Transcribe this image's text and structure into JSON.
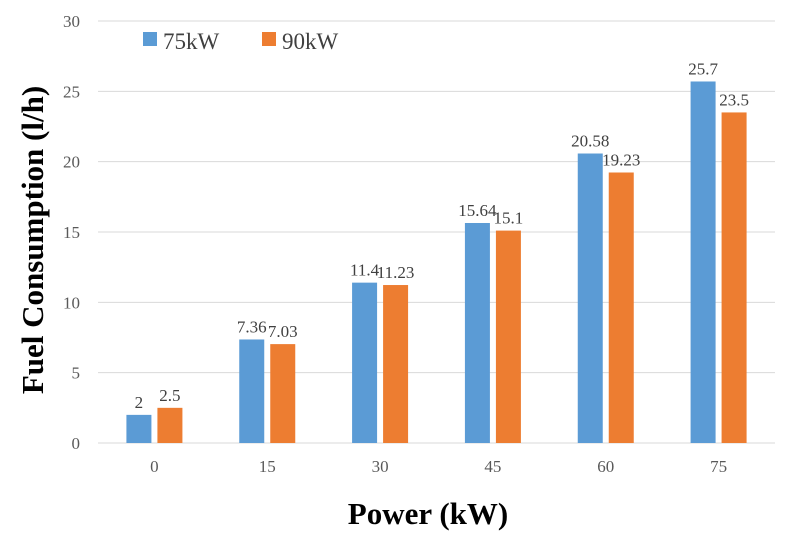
{
  "chart_data": {
    "type": "bar",
    "title": "",
    "xlabel": "Power (kW)",
    "ylabel": "Fuel Consumption (l/h)",
    "categories": [
      "0",
      "15",
      "30",
      "45",
      "60",
      "75"
    ],
    "series": [
      {
        "name": "75kW",
        "color": "#5b9bd5",
        "values": [
          2,
          7.36,
          11.4,
          15.64,
          20.58,
          25.7
        ],
        "labels": [
          "2",
          "7.36",
          "11.4",
          "15.64",
          "20.58",
          "25.7"
        ]
      },
      {
        "name": "90kW",
        "color": "#ed7d31",
        "values": [
          2.5,
          7.03,
          11.23,
          15.1,
          19.23,
          23.5
        ],
        "labels": [
          "2.5",
          "7.03",
          "11.23",
          "15.1",
          "19.23",
          "23.5"
        ]
      }
    ],
    "ylim": [
      0,
      30
    ],
    "yticks": [
      "0",
      "5",
      "10",
      "15",
      "20",
      "25",
      "30"
    ],
    "grid": true,
    "legend_position": "top-left"
  }
}
